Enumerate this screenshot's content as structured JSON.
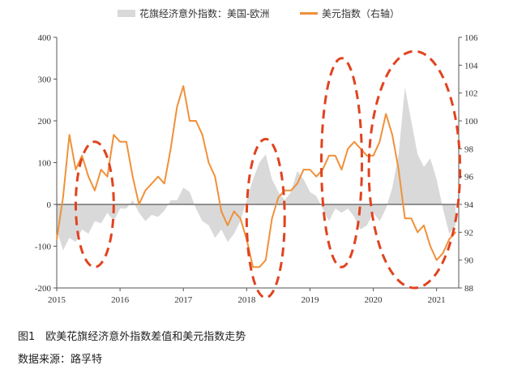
{
  "figure": {
    "caption": "图1　欧美花旗经济意外指数差值和美元指数走势",
    "source": "数据来源：路孚特"
  },
  "chart_data": {
    "type": "area",
    "legend": [
      "花旗经济意外指数：美国-欧洲",
      "美元指数（右轴）"
    ],
    "legend_position": "top",
    "x_ticks": [
      "2015",
      "2016",
      "2017",
      "2018",
      "2019",
      "2020",
      "2021"
    ],
    "x_range": [
      2015.0,
      2021.35
    ],
    "y_left": {
      "ticks": [
        "400",
        "300",
        "200",
        "100",
        "0",
        "-100",
        "-200"
      ],
      "range": [
        -200,
        400
      ]
    },
    "y_right": {
      "ticks": [
        "106",
        "104",
        "102",
        "100",
        "98",
        "96",
        "94",
        "92",
        "90",
        "88"
      ],
      "range": [
        88,
        106
      ]
    },
    "grid": false,
    "series": [
      {
        "name": "花旗经济意外指数：美国-欧洲",
        "type": "area",
        "axis": "left",
        "color": "#d9d9d9",
        "x": [
          2015.0,
          2015.1,
          2015.2,
          2015.3,
          2015.4,
          2015.5,
          2015.6,
          2015.7,
          2015.8,
          2015.9,
          2016.0,
          2016.1,
          2016.2,
          2016.3,
          2016.4,
          2016.5,
          2016.6,
          2016.7,
          2016.8,
          2016.9,
          2017.0,
          2017.1,
          2017.2,
          2017.3,
          2017.4,
          2017.5,
          2017.6,
          2017.7,
          2017.8,
          2017.9,
          2018.0,
          2018.1,
          2018.2,
          2018.3,
          2018.4,
          2018.5,
          2018.6,
          2018.7,
          2018.8,
          2018.9,
          2019.0,
          2019.1,
          2019.2,
          2019.3,
          2019.4,
          2019.5,
          2019.6,
          2019.7,
          2019.8,
          2019.9,
          2020.0,
          2020.1,
          2020.2,
          2020.3,
          2020.4,
          2020.5,
          2020.6,
          2020.7,
          2020.8,
          2020.9,
          2021.0,
          2021.1,
          2021.2,
          2021.3
        ],
        "values": [
          -60,
          -110,
          -80,
          -90,
          -60,
          -70,
          -40,
          -45,
          -20,
          -40,
          -10,
          -10,
          10,
          -20,
          -40,
          -25,
          -30,
          -15,
          10,
          10,
          40,
          30,
          -10,
          -40,
          -50,
          -80,
          -60,
          -90,
          -70,
          -40,
          10,
          60,
          100,
          120,
          60,
          30,
          10,
          30,
          80,
          60,
          30,
          20,
          -10,
          -40,
          -10,
          -20,
          -10,
          -30,
          -60,
          -50,
          -20,
          -40,
          -10,
          40,
          120,
          280,
          200,
          120,
          90,
          110,
          60,
          -10,
          -70,
          -50
        ]
      },
      {
        "name": "美元指数（右轴）",
        "type": "line",
        "axis": "right",
        "color": "#f0913a",
        "x": [
          2015.0,
          2015.1,
          2015.2,
          2015.3,
          2015.4,
          2015.5,
          2015.6,
          2015.7,
          2015.8,
          2015.9,
          2016.0,
          2016.1,
          2016.2,
          2016.3,
          2016.4,
          2016.5,
          2016.6,
          2016.7,
          2016.8,
          2016.9,
          2017.0,
          2017.1,
          2017.2,
          2017.3,
          2017.4,
          2017.5,
          2017.6,
          2017.7,
          2017.8,
          2017.9,
          2018.0,
          2018.1,
          2018.2,
          2018.3,
          2018.4,
          2018.5,
          2018.6,
          2018.7,
          2018.8,
          2018.9,
          2019.0,
          2019.1,
          2019.2,
          2019.3,
          2019.4,
          2019.5,
          2019.6,
          2019.7,
          2019.8,
          2019.9,
          2020.0,
          2020.1,
          2020.2,
          2020.3,
          2020.4,
          2020.5,
          2020.6,
          2020.7,
          2020.8,
          2020.9,
          2021.0,
          2021.1,
          2021.2,
          2021.3
        ],
        "values": [
          91.5,
          94.5,
          99.0,
          96.5,
          97.5,
          96.0,
          95.0,
          96.5,
          96.0,
          99.0,
          98.5,
          98.5,
          96.0,
          94.0,
          95.0,
          95.5,
          96.0,
          95.5,
          98.0,
          101.0,
          102.5,
          100.0,
          100.0,
          99.0,
          97.0,
          96.0,
          93.5,
          92.5,
          93.5,
          93.0,
          91.5,
          89.5,
          89.5,
          90.0,
          93.0,
          94.5,
          95.0,
          95.0,
          95.5,
          96.5,
          96.5,
          96.0,
          96.5,
          97.5,
          97.5,
          96.5,
          98.0,
          98.5,
          98.0,
          97.5,
          97.5,
          98.5,
          100.5,
          99.0,
          96.5,
          93.0,
          93.0,
          92.0,
          92.5,
          91.0,
          90.0,
          90.5,
          91.5,
          92.0
        ]
      }
    ],
    "annotations": [
      {
        "shape": "dashed-ellipse",
        "x_center": 2015.6,
        "y_center": 94.0,
        "x_radius": 0.3,
        "y_radius": 4.5,
        "axis": "right"
      },
      {
        "shape": "dashed-ellipse",
        "x_center": 2018.3,
        "y_center": 93.0,
        "x_radius": 0.3,
        "y_radius": 5.7,
        "axis": "right"
      },
      {
        "shape": "dashed-ellipse",
        "x_center": 2019.5,
        "y_center": 97.0,
        "x_radius": 0.32,
        "y_radius": 7.5,
        "axis": "right"
      },
      {
        "shape": "dashed-ellipse",
        "x_center": 2020.65,
        "y_center": 96.5,
        "x_radius": 0.72,
        "y_radius": 8.5,
        "axis": "right"
      }
    ]
  }
}
